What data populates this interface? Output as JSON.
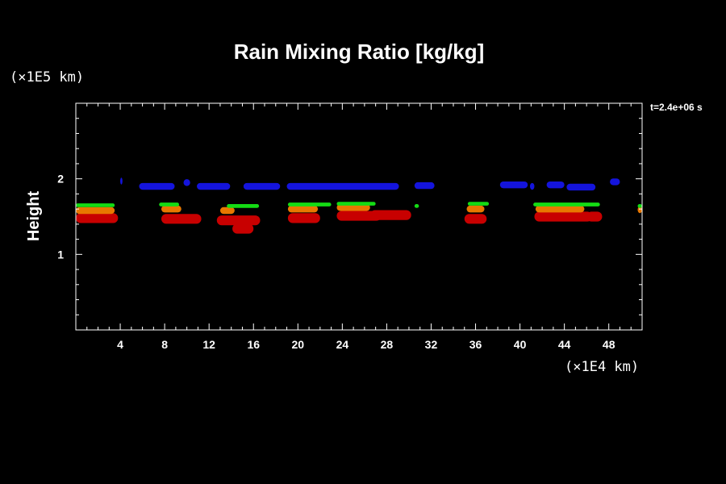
{
  "chart_data": {
    "type": "heatmap",
    "title": "Rain Mixing Ratio [kg/kg]",
    "xlabel": "",
    "ylabel": "Height",
    "x_unit_label": "(×1E4 km)",
    "y_unit_label": "(×1E5 km)",
    "time_label": "t=2.4e+06 s",
    "xlim": [
      0,
      51
    ],
    "ylim": [
      0,
      3
    ],
    "x_ticks": [
      4,
      8,
      12,
      16,
      20,
      24,
      28,
      32,
      36,
      40,
      44,
      48
    ],
    "y_ticks": [
      1,
      2
    ],
    "levels": [
      {
        "name": "blue",
        "color": "#1414dc"
      },
      {
        "name": "green",
        "color": "#14dc14"
      },
      {
        "name": "yellow",
        "color": "#e6c800"
      },
      {
        "name": "orange",
        "color": "#e87800"
      },
      {
        "name": "red",
        "color": "#c80000"
      }
    ],
    "cells": [
      {
        "x": [
          0.0,
          3.8
        ],
        "y_mid": 1.48,
        "level": "red"
      },
      {
        "x": [
          0.0,
          3.5
        ],
        "y_mid": 1.58,
        "level": "orange"
      },
      {
        "x": [
          0.0,
          3.5
        ],
        "y_mid": 1.65,
        "level": "green"
      },
      {
        "x": [
          7.7,
          11.3
        ],
        "y_mid": 1.47,
        "level": "red"
      },
      {
        "x": [
          7.7,
          9.5
        ],
        "y_mid": 1.6,
        "level": "orange"
      },
      {
        "x": [
          7.5,
          9.3
        ],
        "y_mid": 1.66,
        "level": "green"
      },
      {
        "x": [
          12.7,
          16.6
        ],
        "y_mid": 1.45,
        "level": "red"
      },
      {
        "x": [
          14.1,
          16.0
        ],
        "y_mid": 1.34,
        "level": "red"
      },
      {
        "x": [
          13.0,
          14.3
        ],
        "y_mid": 1.58,
        "level": "orange"
      },
      {
        "x": [
          13.6,
          16.5
        ],
        "y_mid": 1.64,
        "level": "green"
      },
      {
        "x": [
          19.1,
          22.0
        ],
        "y_mid": 1.48,
        "level": "red"
      },
      {
        "x": [
          19.1,
          21.8
        ],
        "y_mid": 1.6,
        "level": "orange"
      },
      {
        "x": [
          19.1,
          23.0
        ],
        "y_mid": 1.66,
        "level": "green"
      },
      {
        "x": [
          23.5,
          27.5
        ],
        "y_mid": 1.51,
        "level": "red"
      },
      {
        "x": [
          23.5,
          26.5
        ],
        "y_mid": 1.62,
        "level": "orange"
      },
      {
        "x": [
          23.5,
          27.0
        ],
        "y_mid": 1.67,
        "level": "green"
      },
      {
        "x": [
          26.5,
          30.2
        ],
        "y_mid": 1.52,
        "level": "red"
      },
      {
        "x": [
          30.5,
          30.9
        ],
        "y_mid": 1.64,
        "level": "green"
      },
      {
        "x": [
          35.0,
          37.0
        ],
        "y_mid": 1.47,
        "level": "red"
      },
      {
        "x": [
          35.2,
          36.8
        ],
        "y_mid": 1.6,
        "level": "orange"
      },
      {
        "x": [
          35.3,
          37.2
        ],
        "y_mid": 1.67,
        "level": "green"
      },
      {
        "x": [
          41.3,
          46.5
        ],
        "y_mid": 1.5,
        "level": "red"
      },
      {
        "x": [
          41.4,
          45.8
        ],
        "y_mid": 1.6,
        "level": "orange"
      },
      {
        "x": [
          41.2,
          47.2
        ],
        "y_mid": 1.66,
        "level": "green"
      },
      {
        "x": [
          46.0,
          47.4
        ],
        "y_mid": 1.5,
        "level": "red"
      },
      {
        "x": [
          50.6,
          51.0
        ],
        "y_mid": 1.59,
        "level": "orange"
      },
      {
        "x": [
          50.6,
          51.0
        ],
        "y_mid": 1.64,
        "level": "green"
      },
      {
        "x": [
          5.7,
          8.9
        ],
        "y_mid": 1.9,
        "level": "blue"
      },
      {
        "x": [
          9.7,
          10.3
        ],
        "y_mid": 1.95,
        "level": "blue"
      },
      {
        "x": [
          10.9,
          13.9
        ],
        "y_mid": 1.9,
        "level": "blue"
      },
      {
        "x": [
          15.1,
          18.4
        ],
        "y_mid": 1.9,
        "level": "blue"
      },
      {
        "x": [
          19.0,
          29.1
        ],
        "y_mid": 1.9,
        "level": "blue"
      },
      {
        "x": [
          30.5,
          32.3
        ],
        "y_mid": 1.91,
        "level": "blue"
      },
      {
        "x": [
          38.2,
          40.7
        ],
        "y_mid": 1.92,
        "level": "blue"
      },
      {
        "x": [
          42.4,
          44.0
        ],
        "y_mid": 1.92,
        "level": "blue"
      },
      {
        "x": [
          44.2,
          46.8
        ],
        "y_mid": 1.89,
        "level": "blue"
      },
      {
        "x": [
          48.1,
          49.0
        ],
        "y_mid": 1.96,
        "level": "blue"
      },
      {
        "x": [
          4.0,
          4.2
        ],
        "y_mid": 1.97,
        "level": "blue"
      },
      {
        "x": [
          40.9,
          41.3
        ],
        "y_mid": 1.9,
        "level": "blue"
      }
    ]
  }
}
